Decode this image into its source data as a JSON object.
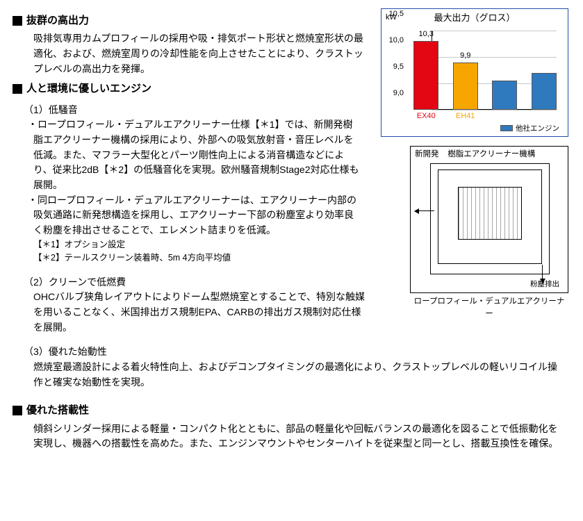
{
  "sections": {
    "s1": {
      "title": "抜群の高出力",
      "body": "吸排気専用カムプロフィールの採用や吸・排気ポート形状と燃焼室形状の最適化、および、燃焼室周りの冷却性能を向上させたことにより、クラストップレベルの高出力を発揮。"
    },
    "s2": {
      "title": "人と環境に優しいエンジン",
      "sub1_num": "（1）低騒音",
      "sub1_b1": "・ロープロフィール・デュアルエアクリーナー仕様【＊1】では、新開発樹脂エアクリーナー機構の採用により、外部への吸気放射音・音圧レベルを低減。また、マフラー大型化とパーツ剛性向上による消音構造などにより、従来比2dB【＊2】の低騒音化を実現。欧州騒音規制Stage2対応仕様も展開。",
      "sub1_b2": "・同ロープロフィール・デュアルエアクリーナーは、エアクリーナー内部の吸気通路に新発想構造を採用し、エアクリーナー下部の粉塵室より効率良く粉塵を排出させることで、エレメント詰まりを低減。",
      "fn1": "【＊1】オプション設定",
      "fn2": "【＊2】テールスクリーン装着時、5m 4方向平均値",
      "sub2_num": "（2）クリーンで低燃費",
      "sub2_body": "OHCバルブ狭角レイアウトによりドーム型燃焼室とすることで、特別な触媒を用いることなく、米国排出ガス規制EPA、CARBの排出ガス規制対応仕様を展開。",
      "sub3_num": "（3）優れた始動性",
      "sub3_body": "燃焼室最適設計による着火特性向上、およびデコンプタイミングの最適化により、クラストップレベルの軽いリコイル操作と確実な始動性を実現。"
    },
    "s3": {
      "title": "優れた搭載性",
      "body": "傾斜シリンダー採用による軽量・コンパクト化とともに、部品の軽量化や回転バランスの最適化を図ることで低振動化を実現し、機器への搭載性を高めた。また、エンジンマウントやセンターハイトを従来型と同一とし、搭載互換性を確保。"
    }
  },
  "chart": {
    "type": "bar",
    "title": "最大出力（グロス）",
    "ylabel": "kW",
    "ylim": [
      9.0,
      10.5
    ],
    "ytick_step": 0.5,
    "yticks": [
      "9,0",
      "9,5",
      "10,0",
      "10,5"
    ],
    "grid_color": "#c8c8c8",
    "border_color": "#1f4ea8",
    "bars": [
      {
        "label": "EX40",
        "value": 10.3,
        "value_text": "10,3",
        "color": "#e30613",
        "label_color": "#e30613"
      },
      {
        "label": "EH41",
        "value": 9.9,
        "value_text": "9,9",
        "color": "#f7a600",
        "label_color": "#f7a600"
      },
      {
        "label": "",
        "value": 9.55,
        "value_text": "",
        "color": "#2f7abf",
        "label_color": "#000000"
      },
      {
        "label": "",
        "value": 9.7,
        "value_text": "",
        "color": "#2f7abf",
        "label_color": "#000000"
      }
    ],
    "legend": {
      "label": "他社エンジン",
      "color": "#2f7abf"
    }
  },
  "diagram": {
    "top_left": "新開発",
    "top_right": "樹脂エアクリーナー機構",
    "dust": "粉塵排出",
    "caption": "ロープロフィール・デュアルエアクリーナー"
  }
}
